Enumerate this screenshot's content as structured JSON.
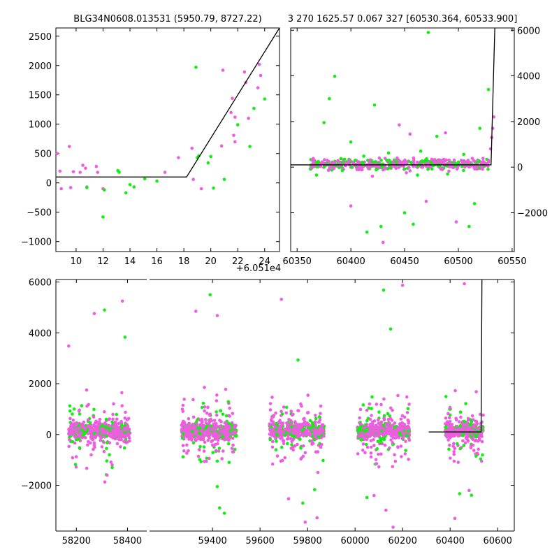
{
  "figure": {
    "title_left": "BLG34N0608.013531 (5950.79, 8727.22)",
    "title_right": "3 270 1625.57 0.067 327 [60530.364, 60533.900]",
    "offset_label": "+6.051e4"
  },
  "colors": {
    "series_a": "#ee5ce0",
    "series_b": "#10ef10",
    "model": "#000000"
  },
  "chart_data": [
    {
      "type": "scatter",
      "panel": "top-left",
      "xlim": [
        8.5,
        25.1
      ],
      "ylim": [
        -1170,
        2640
      ],
      "xticks": [
        10,
        12,
        14,
        16,
        18,
        20,
        22,
        24
      ],
      "yticks": [
        -1000,
        -500,
        0,
        500,
        1000,
        1500,
        2000,
        2500
      ],
      "series": [
        {
          "color": "#ee5ce0",
          "points": [
            [
              8.6,
              500
            ],
            [
              8.8,
              200
            ],
            [
              8.9,
              -100
            ],
            [
              9.5,
              620
            ],
            [
              9.6,
              -80
            ],
            [
              9.8,
              190
            ],
            [
              10.3,
              180
            ],
            [
              10.5,
              300
            ],
            [
              10.7,
              250
            ],
            [
              10.8,
              -70
            ],
            [
              11.5,
              280
            ],
            [
              11.6,
              180
            ],
            [
              12.0,
              -100
            ],
            [
              16.6,
              180
            ],
            [
              17.6,
              430
            ],
            [
              18.6,
              590
            ],
            [
              18.7,
              60
            ],
            [
              19.3,
              -100
            ],
            [
              20.8,
              630
            ],
            [
              20.9,
              1920
            ],
            [
              21.5,
              1200
            ],
            [
              21.6,
              1440
            ],
            [
              21.7,
              810
            ],
            [
              21.8,
              700
            ],
            [
              21.8,
              1120
            ],
            [
              22.5,
              1890
            ],
            [
              22.6,
              1710
            ],
            [
              22.8,
              1100
            ],
            [
              23.5,
              1620
            ],
            [
              23.6,
              2020
            ],
            [
              23.7,
              1830
            ]
          ]
        },
        {
          "color": "#10ef10",
          "points": [
            [
              10.8,
              -80
            ],
            [
              12.0,
              -580
            ],
            [
              12.1,
              -120
            ],
            [
              13.1,
              210
            ],
            [
              13.2,
              180
            ],
            [
              13.7,
              -170
            ],
            [
              14.0,
              -30
            ],
            [
              14.3,
              -70
            ],
            [
              15.1,
              70
            ],
            [
              16.0,
              30
            ],
            [
              18.9,
              1970
            ],
            [
              19.0,
              430
            ],
            [
              19.1,
              460
            ],
            [
              19.8,
              340
            ],
            [
              20.0,
              450
            ],
            [
              20.2,
              -90
            ],
            [
              21.0,
              60
            ],
            [
              22.0,
              990
            ],
            [
              22.9,
              620
            ],
            [
              23.2,
              1270
            ],
            [
              24.0,
              1430
            ]
          ]
        }
      ],
      "model": [
        [
          8.5,
          100
        ],
        [
          18.2,
          100
        ],
        [
          25.1,
          2640
        ]
      ]
    },
    {
      "type": "scatter",
      "panel": "top-right",
      "xlim": [
        60344,
        60552
      ],
      "ylim": [
        -3700,
        6100
      ],
      "xticks": [
        60350,
        60400,
        60450,
        60500,
        60550
      ],
      "yticks": [
        -2000,
        0,
        2000,
        4000,
        6000
      ],
      "series": [
        {
          "color": "#ee5ce0",
          "points": [
            [
              60365,
              380
            ],
            [
              60372,
              150
            ],
            [
              60380,
              -80
            ],
            [
              60388,
              280
            ],
            [
              60395,
              60
            ],
            [
              60402,
              190
            ],
            [
              60410,
              -120
            ],
            [
              60418,
              320
            ],
            [
              60425,
              90
            ],
            [
              60432,
              -50
            ],
            [
              60440,
              260
            ],
            [
              60448,
              120
            ],
            [
              60455,
              -160
            ],
            [
              60462,
              210
            ],
            [
              60470,
              40
            ],
            [
              60478,
              330
            ],
            [
              60485,
              -90
            ],
            [
              60492,
              170
            ],
            [
              60500,
              60
            ],
            [
              60508,
              240
            ],
            [
              60515,
              -40
            ],
            [
              60522,
              180
            ],
            [
              60528,
              300
            ],
            [
              60530,
              800
            ],
            [
              60531,
              1300
            ],
            [
              60532,
              1700
            ],
            [
              60533,
              2200
            ],
            [
              60400,
              -1700
            ],
            [
              60430,
              -3300
            ],
            [
              60455,
              1450
            ],
            [
              60470,
              -1500
            ],
            [
              60488,
              1500
            ],
            [
              60498,
              -2400
            ],
            [
              60445,
              1850
            ],
            [
              60420,
              -400
            ]
          ]
        },
        {
          "color": "#10ef10",
          "points": [
            [
              60368,
              -350
            ],
            [
              60375,
              1950
            ],
            [
              60380,
              3000
            ],
            [
              60385,
              3980
            ],
            [
              60392,
              -150
            ],
            [
              60400,
              1100
            ],
            [
              60412,
              480
            ],
            [
              60422,
              2720
            ],
            [
              60428,
              -2600
            ],
            [
              60435,
              620
            ],
            [
              60442,
              250
            ],
            [
              60450,
              -2000
            ],
            [
              60458,
              -2500
            ],
            [
              60465,
              700
            ],
            [
              60472,
              5900
            ],
            [
              60480,
              1350
            ],
            [
              60490,
              -300
            ],
            [
              60500,
              220
            ],
            [
              60510,
              -2600
            ],
            [
              60515,
              -1600
            ],
            [
              60520,
              1700
            ],
            [
              60528,
              3400
            ],
            [
              60415,
              -2850
            ],
            [
              60462,
              -350
            ],
            [
              60505,
              560
            ]
          ]
        }
      ],
      "model": [
        [
          60344,
          100
        ],
        [
          60530.4,
          100
        ],
        [
          60533.9,
          6100
        ]
      ]
    },
    {
      "type": "scatter",
      "panel": "bottom",
      "xlim": [
        58120,
        60670
      ],
      "ylim": [
        -3800,
        6100
      ],
      "xticks": [
        58200,
        58400,
        59400,
        59600,
        59800,
        60000,
        60200,
        60400,
        60600
      ],
      "yticks": [
        -2000,
        0,
        2000,
        4000,
        6000
      ],
      "series": [
        {
          "color": "#ee5ce0",
          "seasons": [
            [
              58170,
              58410
            ],
            [
              59270,
              59500
            ],
            [
              59640,
              59870
            ],
            [
              60010,
              60230
            ],
            [
              60380,
              60540
            ]
          ],
          "outliers": [
            [
              58170,
              3480
            ],
            [
              58270,
              4760
            ],
            [
              58380,
              5250
            ],
            [
              58320,
              -1600
            ],
            [
              59330,
              4850
            ],
            [
              59420,
              4680
            ],
            [
              59690,
              5320
            ],
            [
              59720,
              -2530
            ],
            [
              59790,
              -3450
            ],
            [
              59840,
              -3280
            ],
            [
              60080,
              -2400
            ],
            [
              60130,
              -2980
            ],
            [
              60160,
              -3650
            ],
            [
              60200,
              5870
            ],
            [
              60460,
              5930
            ],
            [
              60480,
              -2200
            ],
            [
              60420,
              -3300
            ]
          ]
        },
        {
          "color": "#10ef10",
          "seasons": [
            [
              58170,
              58410
            ],
            [
              59270,
              59500
            ],
            [
              59640,
              59870
            ],
            [
              60010,
              60230
            ],
            [
              60380,
              60540
            ]
          ],
          "outliers": [
            [
              58310,
              4900
            ],
            [
              58390,
              3830
            ],
            [
              58340,
              -1300
            ],
            [
              59390,
              5500
            ],
            [
              59420,
              -2050
            ],
            [
              59430,
              -2890
            ],
            [
              59450,
              -3100
            ],
            [
              59760,
              2930
            ],
            [
              59780,
              -2700
            ],
            [
              59830,
              -2170
            ],
            [
              60120,
              5680
            ],
            [
              60150,
              4150
            ],
            [
              60050,
              -2480
            ],
            [
              60440,
              -2330
            ],
            [
              60490,
              -2390
            ],
            [
              60500,
              6150
            ]
          ]
        }
      ],
      "model": [
        [
          60310,
          100
        ],
        [
          60530.4,
          100
        ],
        [
          60533.9,
          6100
        ]
      ]
    }
  ]
}
